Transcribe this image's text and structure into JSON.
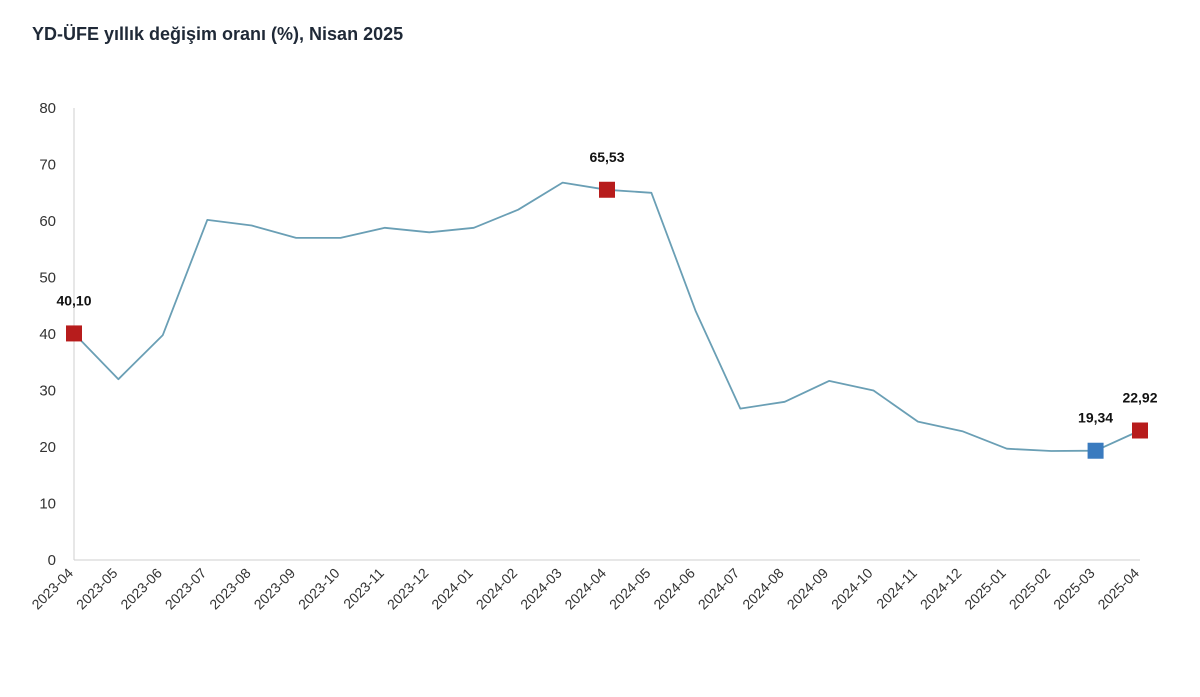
{
  "chart_data": {
    "type": "line",
    "title": "YD-ÜFE yıllık değişim oranı (%), Nisan 2025",
    "xlabel": "",
    "ylabel": "",
    "ylim": [
      0,
      80
    ],
    "yticks": [
      0,
      10,
      20,
      30,
      40,
      50,
      60,
      70,
      80
    ],
    "grid": false,
    "categories": [
      "2023-04",
      "2023-05",
      "2023-06",
      "2023-07",
      "2023-08",
      "2023-09",
      "2023-10",
      "2023-11",
      "2023-12",
      "2024-01",
      "2024-02",
      "2024-03",
      "2024-04",
      "2024-05",
      "2024-06",
      "2024-07",
      "2024-08",
      "2024-09",
      "2024-10",
      "2024-11",
      "2024-12",
      "2025-01",
      "2025-02",
      "2025-03",
      "2025-04"
    ],
    "series": [
      {
        "values": [
          40.1,
          32.0,
          39.8,
          60.2,
          59.2,
          57.0,
          57.0,
          58.8,
          58.0,
          58.8,
          62.0,
          66.8,
          65.53,
          65.0,
          44.0,
          26.8,
          28.0,
          31.7,
          30.0,
          24.5,
          22.8,
          19.7,
          19.3,
          19.34,
          22.92
        ],
        "color": "#6a9fb5"
      }
    ],
    "highlights": [
      {
        "index": 0,
        "label": "40,10",
        "color": "#b71c1c"
      },
      {
        "index": 12,
        "label": "65,53",
        "color": "#b71c1c"
      },
      {
        "index": 23,
        "label": "19,34",
        "color": "#3a7bbf"
      },
      {
        "index": 24,
        "label": "22,92",
        "color": "#b71c1c"
      }
    ]
  }
}
